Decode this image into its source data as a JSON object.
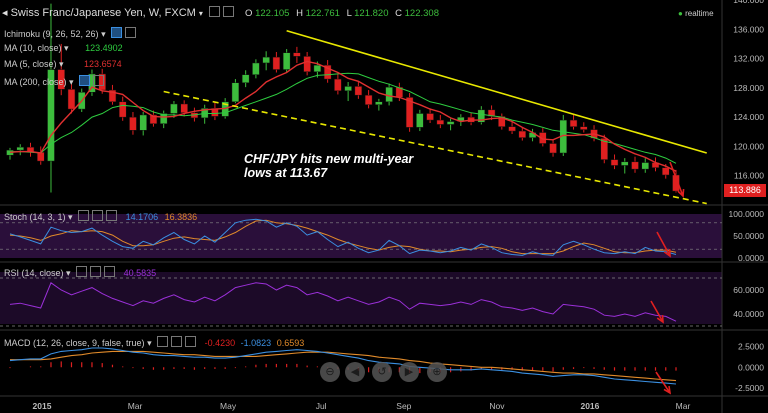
{
  "header": {
    "symbol": "Swiss Franc/Japanese Yen, W, FXCM",
    "o_label": "O",
    "o": "122.105",
    "h_label": "H",
    "h": "122.761",
    "l_label": "L",
    "l": "121.820",
    "c_label": "C",
    "c": "122.308",
    "realtime": "realtime"
  },
  "indicators": {
    "ichimoku": "Ichimoku (9, 26, 52, 26)",
    "ma10": "MA (10, close)",
    "ma10_val": "123.4902",
    "ma5": "MA (5, close)",
    "ma5_val": "123.6574",
    "ma200": "MA (200, close)"
  },
  "annotation": {
    "line1": "CHF/JPY hits new multi-year",
    "line2": "lows at 113.67"
  },
  "price_label": "113.886",
  "colors": {
    "bull": "#3dbd3d",
    "bear": "#e02020",
    "ma5": "#e03030",
    "ma10": "#2ecc40",
    "trend": "#e8e800",
    "stoch_k": "#3b8fe0",
    "stoch_d": "#e08a2a",
    "rsi": "#9b30d9",
    "macd": "#3b8fe0",
    "signal": "#e08a2a",
    "arrow": "#e02020"
  },
  "chart_data": [
    {
      "type": "candlestick",
      "title": "Swiss Franc/Japanese Yen, W, FXCM",
      "ylim": [
        112,
        140
      ],
      "yticks": [
        "140.000",
        "136.000",
        "132.000",
        "128.000",
        "124.000",
        "120.000",
        "116.000"
      ],
      "xticks": [
        "2015",
        "Mar",
        "May",
        "Jul",
        "Sep",
        "Nov",
        "2016",
        "Mar"
      ],
      "last": 113.886,
      "candles": [
        [
          118.8,
          119.8,
          118.2,
          119.5
        ],
        [
          119.5,
          120.3,
          118.8,
          119.9
        ],
        [
          119.9,
          120.5,
          118.6,
          119.2
        ],
        [
          119.2,
          120.0,
          117.5,
          118.0
        ],
        [
          118.0,
          139.5,
          113.7,
          130.5
        ],
        [
          130.5,
          134.0,
          127.0,
          127.8
        ],
        [
          127.8,
          128.5,
          124.5,
          125.1
        ],
        [
          125.1,
          127.9,
          124.7,
          127.4
        ],
        [
          127.4,
          130.5,
          126.9,
          129.9
        ],
        [
          129.9,
          130.6,
          127.2,
          127.7
        ],
        [
          127.7,
          128.4,
          125.7,
          126.1
        ],
        [
          126.1,
          126.8,
          123.5,
          124.0
        ],
        [
          124.0,
          124.7,
          121.6,
          122.2
        ],
        [
          122.2,
          124.7,
          121.5,
          124.3
        ],
        [
          124.3,
          124.9,
          122.7,
          123.1
        ],
        [
          123.1,
          124.9,
          122.5,
          124.5
        ],
        [
          124.5,
          126.2,
          123.9,
          125.8
        ],
        [
          125.8,
          126.3,
          124.1,
          124.6
        ],
        [
          124.6,
          125.3,
          123.4,
          123.9
        ],
        [
          123.9,
          125.7,
          123.1,
          125.2
        ],
        [
          125.2,
          126.0,
          123.6,
          124.1
        ],
        [
          124.1,
          126.6,
          123.8,
          126.1
        ],
        [
          126.1,
          129.2,
          125.9,
          128.7
        ],
        [
          128.7,
          130.4,
          128.1,
          129.8
        ],
        [
          129.8,
          131.9,
          129.3,
          131.4
        ],
        [
          131.4,
          133.0,
          130.4,
          132.2
        ],
        [
          132.2,
          132.9,
          130.1,
          130.5
        ],
        [
          130.5,
          133.3,
          130.1,
          132.8
        ],
        [
          132.8,
          133.6,
          131.4,
          132.3
        ],
        [
          132.3,
          132.9,
          129.7,
          130.2
        ],
        [
          130.2,
          131.6,
          129.4,
          131.1
        ],
        [
          131.1,
          131.8,
          128.7,
          129.2
        ],
        [
          129.2,
          130.0,
          127.1,
          127.6
        ],
        [
          127.6,
          128.8,
          126.2,
          128.2
        ],
        [
          128.2,
          128.9,
          126.5,
          127.0
        ],
        [
          127.0,
          127.7,
          125.2,
          125.7
        ],
        [
          125.7,
          126.5,
          124.9,
          126.1
        ],
        [
          126.1,
          128.6,
          125.6,
          128.1
        ],
        [
          128.1,
          128.7,
          126.2,
          126.7
        ],
        [
          126.7,
          127.3,
          122.0,
          122.6
        ],
        [
          122.6,
          125.0,
          122.1,
          124.5
        ],
        [
          124.5,
          125.2,
          123.2,
          123.6
        ],
        [
          123.6,
          124.3,
          122.5,
          123.0
        ],
        [
          123.0,
          123.8,
          122.2,
          123.4
        ],
        [
          123.4,
          124.4,
          122.8,
          124.0
        ],
        [
          124.0,
          124.6,
          122.9,
          123.3
        ],
        [
          123.3,
          125.5,
          123.0,
          125.0
        ],
        [
          125.0,
          125.6,
          123.6,
          124.1
        ],
        [
          124.1,
          124.5,
          122.3,
          122.7
        ],
        [
          122.7,
          123.4,
          121.7,
          122.1
        ],
        [
          122.1,
          122.6,
          120.8,
          121.2
        ],
        [
          121.2,
          122.4,
          120.7,
          121.9
        ],
        [
          121.9,
          122.5,
          120.0,
          120.4
        ],
        [
          120.4,
          121.0,
          118.6,
          119.1
        ],
        [
          119.1,
          124.3,
          118.7,
          123.6
        ],
        [
          123.6,
          124.4,
          122.3,
          122.7
        ],
        [
          122.7,
          123.3,
          121.9,
          122.3
        ],
        [
          122.3,
          122.9,
          120.7,
          121.1
        ],
        [
          121.1,
          121.6,
          117.7,
          118.2
        ],
        [
          118.2,
          118.9,
          116.9,
          117.4
        ],
        [
          117.4,
          118.4,
          116.3,
          117.9
        ],
        [
          117.9,
          118.6,
          116.4,
          116.9
        ],
        [
          116.9,
          118.4,
          116.4,
          117.8
        ],
        [
          117.8,
          118.5,
          116.6,
          117.1
        ],
        [
          117.1,
          117.6,
          115.6,
          116.1
        ],
        [
          116.1,
          116.8,
          113.7,
          113.9
        ]
      ],
      "ma5": [
        119.2,
        119.3,
        119.3,
        119.1,
        121.5,
        123.2,
        124.7,
        126.2,
        128.1,
        127.6,
        127.4,
        127.1,
        126.0,
        124.9,
        124.1,
        124.0,
        124.1,
        124.5,
        124.8,
        125.0,
        125.1,
        125.2,
        125.6,
        126.6,
        127.5,
        128.8,
        129.5,
        130.1,
        131.1,
        131.6,
        131.3,
        130.7,
        130.1,
        129.3,
        128.9,
        128.1,
        127.3,
        126.9,
        126.7,
        126.2,
        125.7,
        125.1,
        124.7,
        123.9,
        123.4,
        123.6,
        123.6,
        123.8,
        123.9,
        123.4,
        122.6,
        121.9,
        121.0,
        120.9,
        121.5,
        121.5,
        121.6,
        121.7,
        121.3,
        120.3,
        119.6,
        119.0,
        118.5,
        117.8,
        117.3,
        116.6
      ],
      "ma10": [
        119.3,
        119.3,
        119.2,
        119.1,
        120.3,
        121.2,
        121.9,
        122.9,
        124.0,
        124.5,
        125.3,
        125.6,
        125.5,
        125.3,
        124.7,
        124.3,
        124.3,
        124.2,
        124.3,
        124.5,
        124.5,
        124.6,
        125.1,
        125.6,
        126.1,
        126.6,
        127.1,
        127.8,
        128.6,
        129.3,
        129.7,
        129.8,
        129.9,
        130.0,
        129.9,
        129.4,
        128.9,
        128.5,
        128.0,
        127.5,
        126.8,
        126.1,
        125.8,
        125.4,
        125.0,
        124.6,
        124.4,
        124.2,
        124.0,
        123.6,
        123.3,
        123.0,
        122.6,
        122.2,
        122.0,
        121.8,
        121.6,
        121.2,
        120.7,
        120.4,
        120.0,
        119.6,
        119.2,
        118.9,
        118.4,
        117.7
      ],
      "trendlines": [
        {
          "style": "solid",
          "from": [
            27,
            135.8
          ],
          "to": [
            68,
            119.1
          ]
        },
        {
          "style": "dashed",
          "from": [
            15,
            127.5
          ],
          "to": [
            68,
            112.2
          ]
        }
      ]
    },
    {
      "type": "line",
      "title": "Stoch (14, 3, 1)",
      "values_shown": [
        "14.1706",
        "16.3836"
      ],
      "ylim": [
        0,
        100
      ],
      "yticks": [
        "100.0000",
        "50.0000",
        "0.0000"
      ],
      "band": [
        20,
        80
      ],
      "series": [
        {
          "name": "%K",
          "values": [
            55,
            48,
            40,
            32,
            70,
            62,
            58,
            60,
            68,
            52,
            38,
            26,
            22,
            38,
            30,
            46,
            58,
            42,
            32,
            50,
            36,
            58,
            80,
            86,
            88,
            84,
            70,
            80,
            72,
            52,
            60,
            42,
            26,
            36,
            22,
            12,
            18,
            40,
            28,
            10,
            18,
            16,
            12,
            16,
            24,
            18,
            32,
            24,
            12,
            8,
            6,
            14,
            8,
            6,
            30,
            38,
            30,
            20,
            12,
            10,
            14,
            10,
            24,
            16,
            14,
            8
          ]
        },
        {
          "name": "%D",
          "values": [
            52,
            50,
            46,
            40,
            50,
            55,
            62,
            60,
            62,
            60,
            52,
            38,
            28,
            28,
            30,
            38,
            45,
            48,
            44,
            42,
            40,
            48,
            58,
            72,
            84,
            86,
            80,
            78,
            74,
            68,
            60,
            52,
            42,
            34,
            28,
            22,
            18,
            24,
            28,
            26,
            20,
            16,
            16,
            14,
            18,
            20,
            24,
            26,
            22,
            14,
            10,
            10,
            10,
            10,
            16,
            26,
            34,
            30,
            22,
            14,
            12,
            12,
            16,
            18,
            18,
            13
          ]
        }
      ]
    },
    {
      "type": "line",
      "title": "RSI (14, close)",
      "values_shown": [
        "40.5835"
      ],
      "ylim": [
        30,
        75
      ],
      "yticks": [
        "60.0000",
        "40.0000"
      ],
      "band": [
        30,
        70
      ],
      "series": [
        {
          "name": "RSI",
          "values": [
            48,
            49,
            47,
            45,
            66,
            60,
            56,
            59,
            62,
            57,
            53,
            50,
            47,
            51,
            49,
            53,
            56,
            52,
            50,
            54,
            51,
            56,
            62,
            64,
            66,
            65,
            60,
            64,
            62,
            56,
            58,
            55,
            51,
            54,
            51,
            48,
            50,
            54,
            51,
            44,
            49,
            48,
            47,
            48,
            50,
            48,
            52,
            50,
            46,
            45,
            43,
            45,
            42,
            40,
            48,
            47,
            46,
            44,
            39,
            38,
            40,
            38,
            41,
            39,
            38,
            34
          ]
        }
      ]
    },
    {
      "type": "bar+line",
      "title": "MACD (12, 26, close, 9, false, true)",
      "values_shown": [
        "-0.4230",
        "-1.0823",
        "0.6593"
      ],
      "ylim": [
        -3.2,
        3.5
      ],
      "yticks": [
        "2.5000",
        "0.0000",
        "-2.5000"
      ],
      "series": [
        {
          "name": "MACD",
          "values": [
            0.8,
            0.9,
            1.0,
            1.0,
            1.6,
            1.9,
            2.0,
            2.1,
            2.3,
            2.3,
            2.2,
            2.0,
            1.8,
            1.7,
            1.5,
            1.4,
            1.4,
            1.3,
            1.2,
            1.2,
            1.1,
            1.1,
            1.2,
            1.4,
            1.6,
            1.8,
            1.9,
            2.0,
            2.1,
            2.0,
            1.9,
            1.7,
            1.5,
            1.3,
            1.1,
            0.8,
            0.6,
            0.5,
            0.4,
            0.1,
            0.0,
            -0.1,
            -0.2,
            -0.3,
            -0.3,
            -0.3,
            -0.2,
            -0.3,
            -0.4,
            -0.5,
            -0.7,
            -0.8,
            -0.9,
            -1.1,
            -1.0,
            -0.9,
            -0.9,
            -1.0,
            -1.2,
            -1.4,
            -1.5,
            -1.6,
            -1.7,
            -1.8,
            -1.9,
            -2.0
          ]
        },
        {
          "name": "Signal",
          "values": [
            0.9,
            0.9,
            0.9,
            0.9,
            1.0,
            1.2,
            1.4,
            1.5,
            1.7,
            1.8,
            1.9,
            1.9,
            1.9,
            1.9,
            1.8,
            1.7,
            1.6,
            1.5,
            1.5,
            1.4,
            1.3,
            1.3,
            1.3,
            1.3,
            1.3,
            1.4,
            1.5,
            1.6,
            1.7,
            1.8,
            1.8,
            1.8,
            1.7,
            1.6,
            1.5,
            1.4,
            1.2,
            1.1,
            1.0,
            0.8,
            0.7,
            0.5,
            0.4,
            0.3,
            0.2,
            0.1,
            0.0,
            0.0,
            -0.1,
            -0.2,
            -0.3,
            -0.4,
            -0.5,
            -0.6,
            -0.7,
            -0.7,
            -0.8,
            -0.8,
            -0.9,
            -1.0,
            -1.1,
            -1.2,
            -1.3,
            -1.4,
            -1.5,
            -1.6
          ]
        }
      ]
    }
  ]
}
